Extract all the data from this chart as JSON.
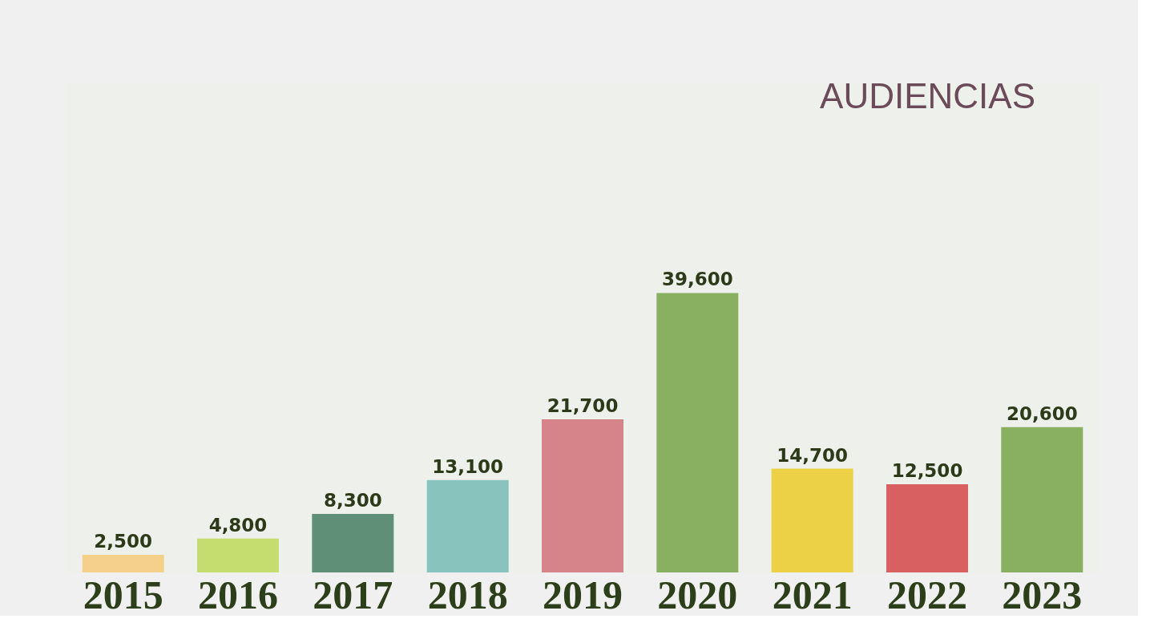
{
  "chart_data": {
    "type": "bar",
    "title": "AUDIENCIAS",
    "categories": [
      "2015",
      "2016",
      "2017",
      "2018",
      "2019",
      "2020",
      "2021",
      "2022",
      "2023"
    ],
    "values": [
      2500,
      4800,
      8300,
      13100,
      21700,
      39600,
      14700,
      12500,
      20600
    ],
    "value_labels": [
      "2,500",
      "4,800",
      "8,300",
      "13,100",
      "21,700",
      "39,600",
      "14,700",
      "12,500",
      "20,600"
    ],
    "colors": [
      "#f5d08a",
      "#c5dc6e",
      "#5f8f76",
      "#89c3bd",
      "#d5848a",
      "#88b060",
      "#ecd046",
      "#d86060",
      "#88b060"
    ],
    "grid": false
  }
}
